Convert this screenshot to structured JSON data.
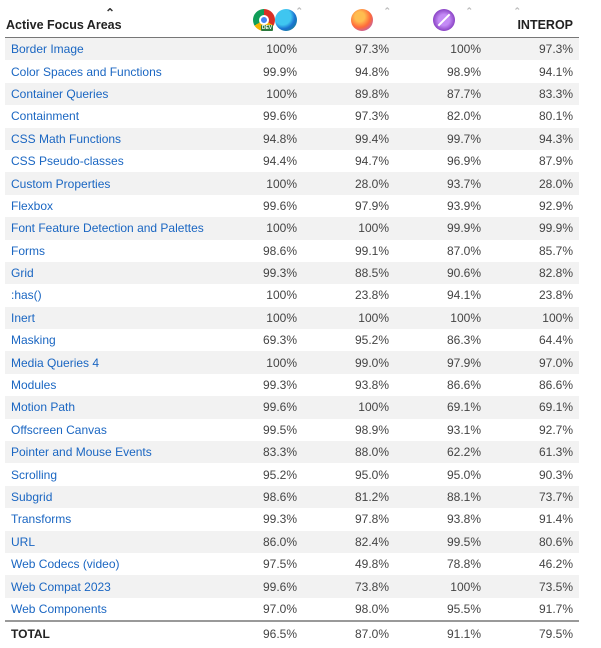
{
  "table": {
    "header": {
      "title": "Active Focus Areas",
      "sort_icon": "caret-up-icon",
      "browsers": [
        {
          "name": "Chrome/Edge Dev",
          "icon": "chrome-edge-dev-icon"
        },
        {
          "name": "Firefox Nightly",
          "icon": "firefox-nightly-icon"
        },
        {
          "name": "Safari Technology Preview",
          "icon": "safari-tp-icon"
        }
      ],
      "dev_badge_text": "DEV",
      "interop_label": "INTEROP"
    },
    "rows": [
      {
        "name": "Border Image",
        "chrome": "100%",
        "firefox": "97.3%",
        "safari": "100%",
        "interop": "97.3%"
      },
      {
        "name": "Color Spaces and Functions",
        "chrome": "99.9%",
        "firefox": "94.8%",
        "safari": "98.9%",
        "interop": "94.1%"
      },
      {
        "name": "Container Queries",
        "chrome": "100%",
        "firefox": "89.8%",
        "safari": "87.7%",
        "interop": "83.3%"
      },
      {
        "name": "Containment",
        "chrome": "99.6%",
        "firefox": "97.3%",
        "safari": "82.0%",
        "interop": "80.1%"
      },
      {
        "name": "CSS Math Functions",
        "chrome": "94.8%",
        "firefox": "99.4%",
        "safari": "99.7%",
        "interop": "94.3%"
      },
      {
        "name": "CSS Pseudo-classes",
        "chrome": "94.4%",
        "firefox": "94.7%",
        "safari": "96.9%",
        "interop": "87.9%"
      },
      {
        "name": "Custom Properties",
        "chrome": "100%",
        "firefox": "28.0%",
        "safari": "93.7%",
        "interop": "28.0%"
      },
      {
        "name": "Flexbox",
        "chrome": "99.6%",
        "firefox": "97.9%",
        "safari": "93.9%",
        "interop": "92.9%"
      },
      {
        "name": "Font Feature Detection and Palettes",
        "chrome": "100%",
        "firefox": "100%",
        "safari": "99.9%",
        "interop": "99.9%"
      },
      {
        "name": "Forms",
        "chrome": "98.6%",
        "firefox": "99.1%",
        "safari": "87.0%",
        "interop": "85.7%"
      },
      {
        "name": "Grid",
        "chrome": "99.3%",
        "firefox": "88.5%",
        "safari": "90.6%",
        "interop": "82.8%"
      },
      {
        "name": ":has()",
        "chrome": "100%",
        "firefox": "23.8%",
        "safari": "94.1%",
        "interop": "23.8%"
      },
      {
        "name": "Inert",
        "chrome": "100%",
        "firefox": "100%",
        "safari": "100%",
        "interop": "100%"
      },
      {
        "name": "Masking",
        "chrome": "69.3%",
        "firefox": "95.2%",
        "safari": "86.3%",
        "interop": "64.4%"
      },
      {
        "name": "Media Queries 4",
        "chrome": "100%",
        "firefox": "99.0%",
        "safari": "97.9%",
        "interop": "97.0%"
      },
      {
        "name": "Modules",
        "chrome": "99.3%",
        "firefox": "93.8%",
        "safari": "86.6%",
        "interop": "86.6%"
      },
      {
        "name": "Motion Path",
        "chrome": "99.6%",
        "firefox": "100%",
        "safari": "69.1%",
        "interop": "69.1%"
      },
      {
        "name": "Offscreen Canvas",
        "chrome": "99.5%",
        "firefox": "98.9%",
        "safari": "93.1%",
        "interop": "92.7%"
      },
      {
        "name": "Pointer and Mouse Events",
        "chrome": "83.3%",
        "firefox": "88.0%",
        "safari": "62.2%",
        "interop": "61.3%"
      },
      {
        "name": "Scrolling",
        "chrome": "95.2%",
        "firefox": "95.0%",
        "safari": "95.0%",
        "interop": "90.3%"
      },
      {
        "name": "Subgrid",
        "chrome": "98.6%",
        "firefox": "81.2%",
        "safari": "88.1%",
        "interop": "73.7%"
      },
      {
        "name": "Transforms",
        "chrome": "99.3%",
        "firefox": "97.8%",
        "safari": "93.8%",
        "interop": "91.4%"
      },
      {
        "name": "URL",
        "chrome": "86.0%",
        "firefox": "82.4%",
        "safari": "99.5%",
        "interop": "80.6%"
      },
      {
        "name": "Web Codecs (video)",
        "chrome": "97.5%",
        "firefox": "49.8%",
        "safari": "78.8%",
        "interop": "46.2%"
      },
      {
        "name": "Web Compat 2023",
        "chrome": "99.6%",
        "firefox": "73.8%",
        "safari": "100%",
        "interop": "73.5%"
      },
      {
        "name": "Web Components",
        "chrome": "97.0%",
        "firefox": "98.0%",
        "safari": "95.5%",
        "interop": "91.7%"
      }
    ],
    "total": {
      "name": "TOTAL",
      "chrome": "96.5%",
      "firefox": "87.0%",
      "safari": "91.1%",
      "interop": "79.5%"
    }
  },
  "colors": {
    "link": "#1a66c2",
    "stripe": "#f2f2f2"
  }
}
